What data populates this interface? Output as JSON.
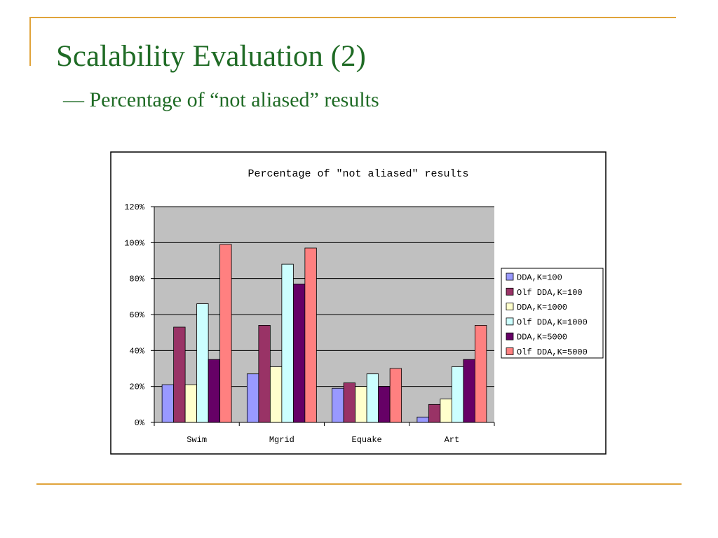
{
  "slide": {
    "title": "Scalability Evaluation (2)",
    "subtitle": "— Percentage of “not aliased” results"
  },
  "colors": {
    "accent_rule": "#e0a33a",
    "title_text": "#1f6b25",
    "plot_background": "#c0c0c0"
  },
  "chart_data": {
    "type": "bar",
    "title": "Percentage of \"not aliased\" results",
    "xlabel": "",
    "ylabel": "",
    "categories": [
      "Swim",
      "Mgrid",
      "Equake",
      "Art"
    ],
    "ylim": [
      0,
      120
    ],
    "yticks": [
      0,
      20,
      40,
      60,
      80,
      100,
      120
    ],
    "ytick_labels": [
      "0%",
      "20%",
      "40%",
      "60%",
      "80%",
      "100%",
      "120%"
    ],
    "grid": true,
    "legend_position": "right",
    "series": [
      {
        "name": "DDA,K=100",
        "color": "#9999ff",
        "values": [
          21,
          27,
          19,
          3
        ]
      },
      {
        "name": "Olf DDA,K=100",
        "color": "#993366",
        "values": [
          53,
          54,
          22,
          10
        ]
      },
      {
        "name": "DDA,K=1000",
        "color": "#ffffcc",
        "values": [
          21,
          31,
          20,
          13
        ]
      },
      {
        "name": "Olf DDA,K=1000",
        "color": "#ccffff",
        "values": [
          66,
          88,
          27,
          31
        ]
      },
      {
        "name": "DDA,K=5000",
        "color": "#660066",
        "values": [
          35,
          77,
          20,
          35
        ]
      },
      {
        "name": "Olf DDA,K=5000",
        "color": "#ff8080",
        "values": [
          99,
          97,
          30,
          54
        ]
      }
    ]
  }
}
